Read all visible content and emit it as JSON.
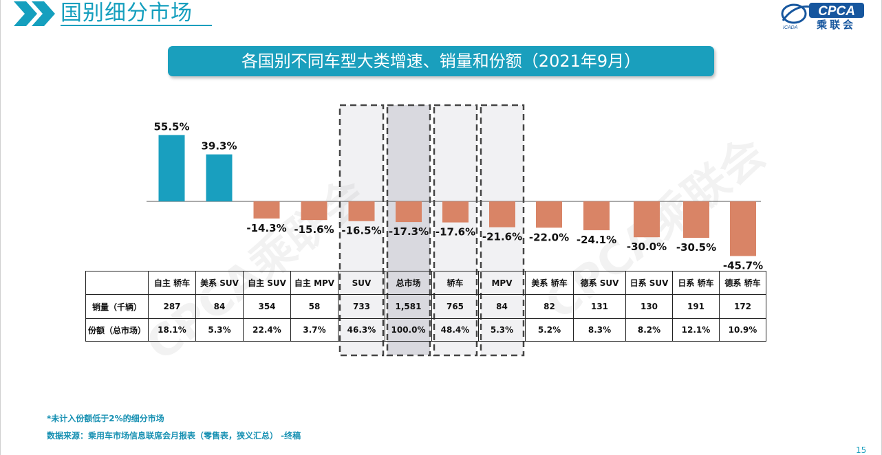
{
  "header": {
    "section_title": "国别细分市场",
    "logo_text": "CPCA",
    "logo_subtext": "乘联会",
    "logo_small_text": "ICADA",
    "chart_banner": "各国别不同车型大类增速、销量和份额（2021年9月）"
  },
  "watermark_text": "CPCA乘联会",
  "chart_data": {
    "type": "bar",
    "categories": [
      "自主 轿车",
      "美系 SUV",
      "自主 SUV",
      "自主 MPV",
      "SUV",
      "总市场",
      "轿车",
      "MPV",
      "美系 轿车",
      "德系 SUV",
      "日系 SUV",
      "日系 轿车",
      "德系 轿车"
    ],
    "values": [
      55.5,
      39.3,
      -14.3,
      -15.6,
      -16.5,
      -17.3,
      -17.6,
      -21.6,
      -22.0,
      -24.1,
      -30.0,
      -30.5,
      -45.7
    ],
    "data_labels": [
      "55.5%",
      "39.3%",
      "-14.3%",
      "-15.6%",
      "-16.5%",
      "-17.3%",
      "-17.6%",
      "-21.6%",
      "-22.0%",
      "-24.1%",
      "-30.0%",
      "-30.5%",
      "-45.7%"
    ],
    "colors": {
      "positive": "#199fbf",
      "negative": "#d98466"
    },
    "highlighted_categories": [
      "SUV",
      "总市场",
      "轿车",
      "MPV"
    ],
    "unit": "%",
    "title": "",
    "xlabel": "",
    "ylabel": ""
  },
  "table": {
    "rows": [
      {
        "label": "销量（千辆）",
        "values": [
          "287",
          "84",
          "354",
          "58",
          "733",
          "1,581",
          "765",
          "84",
          "82",
          "131",
          "130",
          "191",
          "172"
        ]
      },
      {
        "label": "份额（总市场）",
        "values": [
          "18.1%",
          "5.3%",
          "22.4%",
          "3.7%",
          "46.3%",
          "100.0%",
          "48.4%",
          "5.3%",
          "5.2%",
          "8.3%",
          "8.2%",
          "12.1%",
          "10.9%"
        ]
      }
    ]
  },
  "footnotes": {
    "note": "*未计入份额低于2%的细分市场",
    "source": "数据来源：乘用车市场信息联席会月报表（零售表，狭义汇总）  -终稿"
  },
  "page_number": "15"
}
